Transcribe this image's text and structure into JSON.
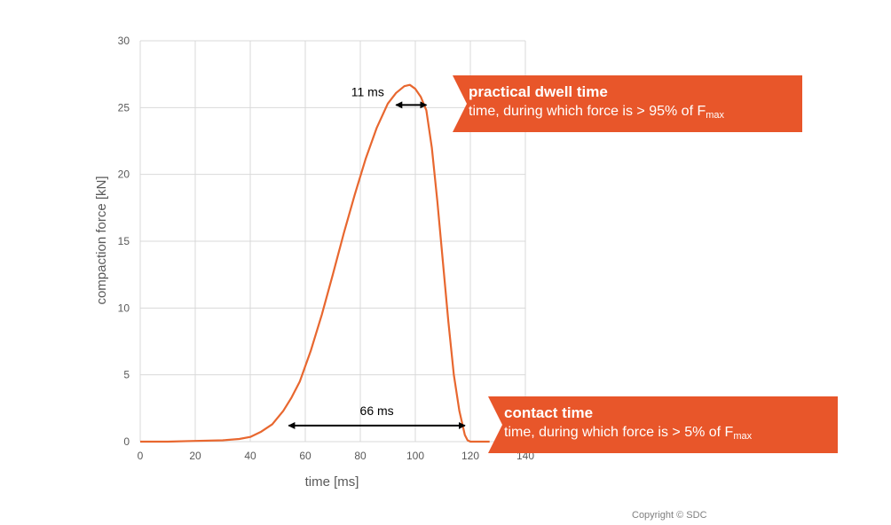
{
  "chart_data": {
    "type": "line",
    "xlabel": "time [ms]",
    "ylabel": "compaction force [kN]",
    "xlim": [
      0,
      140
    ],
    "ylim": [
      0,
      30
    ],
    "xticks": [
      0,
      20,
      40,
      60,
      80,
      100,
      120,
      140
    ],
    "yticks": [
      0,
      5,
      10,
      15,
      20,
      25,
      30
    ],
    "grid": true,
    "series": [
      {
        "color": "#e8672f",
        "x": [
          0,
          10,
          20,
          30,
          36,
          40,
          44,
          48,
          52,
          55,
          58,
          62,
          66,
          70,
          74,
          78,
          82,
          86,
          90,
          93,
          96,
          98,
          100,
          102,
          104,
          106,
          108,
          110,
          112,
          114,
          116,
          118,
          119,
          120,
          125,
          127
        ],
        "y": [
          0.0,
          0.0,
          0.05,
          0.1,
          0.2,
          0.35,
          0.75,
          1.3,
          2.3,
          3.3,
          4.5,
          6.8,
          9.5,
          12.5,
          15.6,
          18.5,
          21.2,
          23.5,
          25.3,
          26.1,
          26.6,
          26.7,
          26.4,
          25.8,
          24.8,
          22.0,
          18.0,
          13.5,
          9.0,
          5.0,
          2.3,
          0.5,
          0.1,
          0.0,
          0.0,
          0.0
        ]
      }
    ],
    "annotations": [
      {
        "text": "11 ms",
        "x_start": 93,
        "x_end": 104,
        "y": 25.2
      },
      {
        "text": "66 ms",
        "x_start": 54,
        "x_end": 118,
        "y": 1.2
      }
    ]
  },
  "callouts": {
    "dwell": {
      "title": "practical dwell time",
      "desc": "time, during which force is > 95% of F",
      "sub": "max",
      "color": "#e8562a"
    },
    "contact": {
      "title": "contact time",
      "desc": "time, during which force is > 5% of F",
      "sub": "max",
      "color": "#e8562a"
    }
  },
  "copyright": "Copyright © SDC"
}
